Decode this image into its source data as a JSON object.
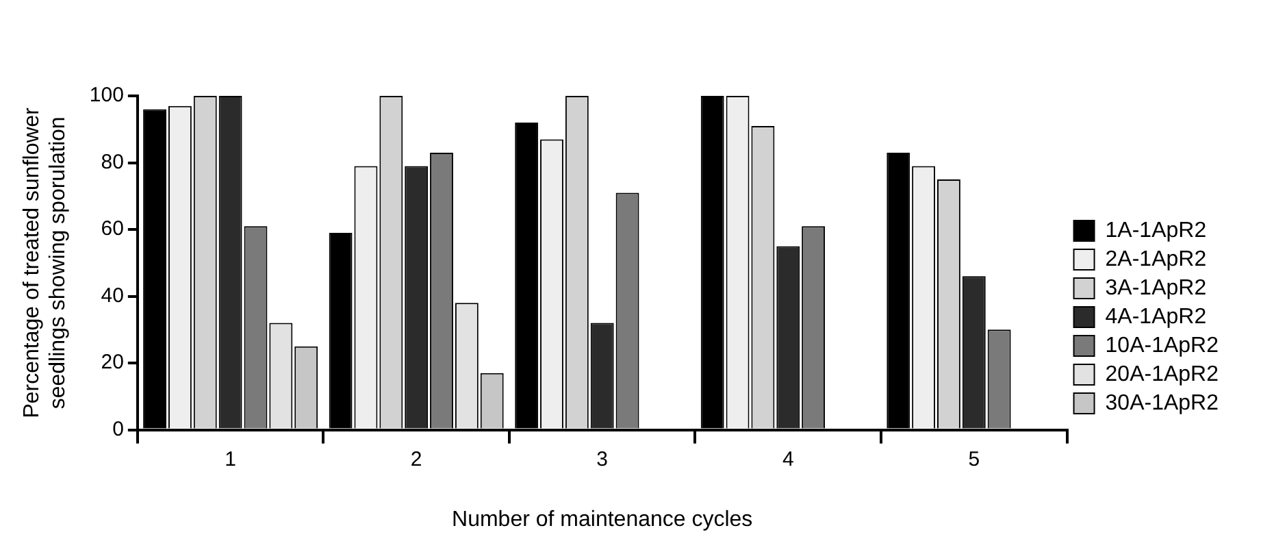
{
  "chart_data": {
    "type": "bar",
    "xlabel": "Number of maintenance cycles",
    "ylabel": "Percentage of treated sunflower seedlings showing sporulation",
    "categories": [
      "1",
      "2",
      "3",
      "4",
      "5"
    ],
    "ylim": [
      0,
      100
    ],
    "yticks": [
      0,
      20,
      40,
      60,
      80,
      100
    ],
    "grid": false,
    "legend": "right",
    "series": [
      {
        "name": "1A-1ApR2",
        "color": "#000000",
        "values": [
          96,
          59,
          92,
          100,
          83
        ]
      },
      {
        "name": "2A-1ApR2",
        "color": "#eeeeee",
        "values": [
          97,
          79,
          87,
          100,
          79
        ]
      },
      {
        "name": "3A-1ApR2",
        "color": "#d2d2d2",
        "values": [
          100,
          100,
          100,
          91,
          75
        ]
      },
      {
        "name": "4A-1ApR2",
        "color": "#2b2b2b",
        "values": [
          100,
          79,
          32,
          55,
          46
        ]
      },
      {
        "name": "10A-1ApR2",
        "color": "#7a7a7a",
        "values": [
          61,
          83,
          71,
          61,
          30
        ]
      },
      {
        "name": "20A-1ApR2",
        "color": "#e2e2e2",
        "values": [
          32,
          38,
          null,
          null,
          null
        ]
      },
      {
        "name": "30A-1ApR2",
        "color": "#c6c6c6",
        "values": [
          25,
          17,
          null,
          null,
          null
        ]
      }
    ]
  }
}
